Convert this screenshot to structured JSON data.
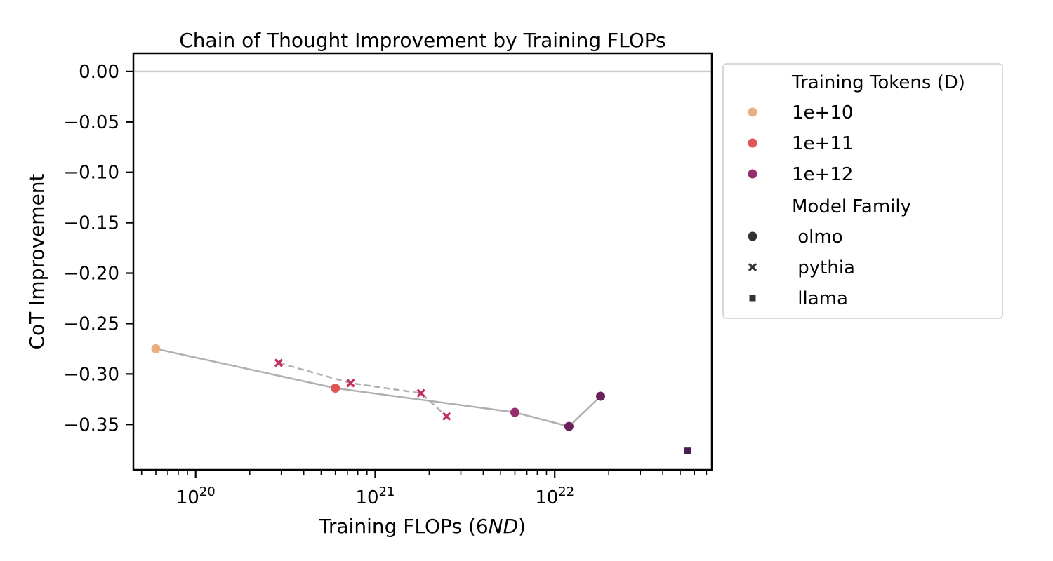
{
  "chart_data": {
    "type": "scatter",
    "title": "Chain of Thought Improvement by Training FLOPs",
    "xlabel_main": "Training FLOPs (6",
    "xlabel_italic": "ND",
    "xlabel_close": ")",
    "ylabel": "CoT Improvement",
    "xscale": "log",
    "xlim": [
      4.5e+19,
      7.5e+22
    ],
    "ylim": [
      -0.395,
      0.018
    ],
    "x_major_ticks": [
      {
        "value": 1e+20,
        "base": "10",
        "exp": "20"
      },
      {
        "value": 1e+21,
        "base": "10",
        "exp": "21"
      },
      {
        "value": 1e+22,
        "base": "10",
        "exp": "22"
      }
    ],
    "y_ticks": [
      0.0,
      -0.05,
      -0.1,
      -0.15,
      -0.2,
      -0.25,
      -0.3,
      -0.35
    ],
    "y_tick_labels": [
      "0.00",
      "−0.05",
      "−0.10",
      "−0.15",
      "−0.20",
      "−0.25",
      "−0.30",
      "−0.35"
    ],
    "reference_line_y": 0.0,
    "grid": false,
    "legend_position": "outside right",
    "legend": {
      "hue_title": "Training Tokens (D)",
      "hue_entries": [
        {
          "label": "1e+10",
          "color": "#eaae7f"
        },
        {
          "label": "1e+11",
          "color": "#df5454"
        },
        {
          "label": "1e+12",
          "color": "#972d6c"
        }
      ],
      "style_title": "Model Family",
      "style_entries": [
        {
          "label": " olmo",
          "marker": "circle"
        },
        {
          "label": " pythia",
          "marker": "x"
        },
        {
          "label": " llama",
          "marker": "square"
        }
      ]
    },
    "series": [
      {
        "family": "olmo",
        "marker": "circle",
        "line_style": "solid",
        "points": [
          {
            "x": 6e+19,
            "y": -0.275,
            "tokens": "1e+10",
            "color": "#eaae7f"
          },
          {
            "x": 6e+20,
            "y": -0.314,
            "tokens": "1e+11",
            "color": "#df5454"
          },
          {
            "x": 6e+21,
            "y": -0.338,
            "tokens": "1e+12",
            "color": "#972d6c"
          },
          {
            "x": 1.2e+22,
            "y": -0.352,
            "tokens": "1e+12",
            "color": "#6b1f5c"
          },
          {
            "x": 1.8e+22,
            "y": -0.322,
            "tokens": "1e+12",
            "color": "#6b1f5c"
          }
        ]
      },
      {
        "family": "pythia",
        "marker": "x",
        "line_style": "dashed",
        "points": [
          {
            "x": 2.9e+20,
            "y": -0.289,
            "tokens": "1e+11",
            "color": "#c0305a"
          },
          {
            "x": 7.3e+20,
            "y": -0.309,
            "tokens": "1e+11",
            "color": "#c0305a"
          },
          {
            "x": 1.8e+21,
            "y": -0.319,
            "tokens": "1e+11",
            "color": "#c0305a"
          },
          {
            "x": 2.5e+21,
            "y": -0.342,
            "tokens": "1e+11",
            "color": "#c0305a"
          }
        ]
      },
      {
        "family": "llama",
        "marker": "square",
        "line_style": "none",
        "points": [
          {
            "x": 5.5e+22,
            "y": -0.376,
            "tokens": "",
            "color": "#4a1a55"
          }
        ]
      }
    ],
    "line_color": "#b0b0b0",
    "ref_line_color": "#cccccc"
  }
}
